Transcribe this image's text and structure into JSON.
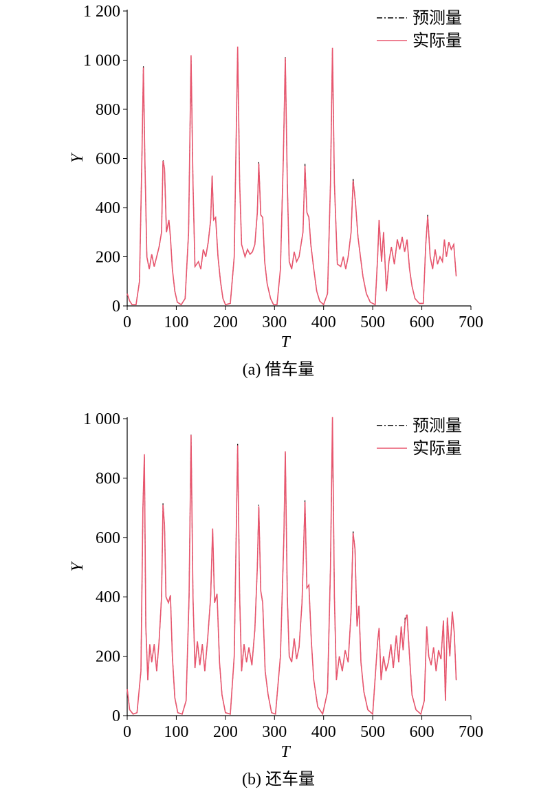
{
  "chart_data": [
    {
      "type": "line",
      "caption": "(a) 借车量",
      "xlabel": "T",
      "ylabel": "Y",
      "legend": "upper right",
      "xlim": [
        0,
        700
      ],
      "ylim": [
        0,
        1200
      ],
      "xticks": [
        0,
        100,
        200,
        300,
        400,
        500,
        600,
        700
      ],
      "yticks": [
        0,
        200,
        400,
        600,
        800,
        {
          "value": 1000,
          "label": "1 000"
        },
        {
          "value": 1200,
          "label": "1 200"
        }
      ],
      "x": [
        0,
        5,
        10,
        18,
        25,
        30,
        33,
        36,
        40,
        45,
        50,
        55,
        60,
        65,
        70,
        73,
        76,
        80,
        85,
        88,
        92,
        97,
        102,
        110,
        118,
        125,
        130,
        134,
        138,
        145,
        150,
        155,
        160,
        165,
        170,
        173,
        176,
        180,
        185,
        190,
        195,
        200,
        210,
        218,
        225,
        229,
        233,
        240,
        245,
        250,
        255,
        260,
        265,
        268,
        272,
        276,
        280,
        285,
        292,
        298,
        305,
        312,
        318,
        322,
        326,
        330,
        335,
        340,
        345,
        350,
        358,
        362,
        366,
        370,
        374,
        380,
        386,
        392,
        400,
        408,
        414,
        418,
        422,
        428,
        435,
        440,
        445,
        450,
        456,
        460,
        465,
        470,
        475,
        480,
        487,
        495,
        505,
        510,
        513,
        518,
        522,
        528,
        533,
        538,
        544,
        550,
        555,
        560,
        565,
        570,
        575,
        580,
        586,
        595,
        603,
        608,
        612,
        617,
        622,
        627,
        632,
        637,
        642,
        646,
        650,
        655,
        660,
        665,
        670
      ],
      "series": [
        {
          "name": "预测量",
          "color": "#000000",
          "dash": "dashdot",
          "values": [
            50,
            20,
            5,
            5,
            100,
            600,
            975,
            600,
            200,
            150,
            210,
            160,
            200,
            240,
            300,
            595,
            560,
            300,
            350,
            280,
            150,
            60,
            15,
            5,
            30,
            300,
            1015,
            500,
            160,
            180,
            150,
            230,
            200,
            260,
            350,
            532,
            350,
            360,
            200,
            100,
            30,
            5,
            10,
            200,
            1050,
            500,
            250,
            200,
            230,
            210,
            220,
            250,
            380,
            585,
            370,
            360,
            180,
            90,
            30,
            5,
            5,
            150,
            600,
            1012,
            500,
            180,
            150,
            220,
            180,
            200,
            300,
            578,
            380,
            360,
            250,
            150,
            60,
            20,
            5,
            50,
            500,
            1045,
            500,
            170,
            160,
            200,
            150,
            200,
            300,
            520,
            420,
            280,
            200,
            120,
            50,
            15,
            5,
            200,
            350,
            180,
            300,
            60,
            180,
            240,
            170,
            270,
            230,
            280,
            220,
            270,
            150,
            80,
            30,
            10,
            10,
            250,
            370,
            200,
            150,
            230,
            170,
            200,
            180,
            270,
            200,
            260,
            230,
            250,
            120
          ]
        },
        {
          "name": "实际量",
          "color": "#e8566e",
          "dash": "solid",
          "values": [
            50,
            20,
            5,
            5,
            100,
            600,
            970,
            600,
            200,
            150,
            210,
            160,
            200,
            240,
            300,
            590,
            560,
            300,
            350,
            280,
            150,
            60,
            15,
            5,
            30,
            300,
            1020,
            500,
            160,
            180,
            150,
            230,
            200,
            260,
            350,
            530,
            350,
            360,
            200,
            100,
            30,
            5,
            10,
            200,
            1055,
            500,
            250,
            200,
            230,
            210,
            220,
            250,
            380,
            580,
            370,
            360,
            180,
            90,
            30,
            5,
            5,
            150,
            600,
            1010,
            500,
            180,
            150,
            220,
            180,
            200,
            300,
            570,
            380,
            360,
            250,
            150,
            60,
            20,
            5,
            50,
            500,
            1050,
            500,
            170,
            160,
            200,
            150,
            200,
            300,
            510,
            420,
            280,
            200,
            120,
            50,
            15,
            5,
            200,
            350,
            180,
            300,
            60,
            180,
            240,
            170,
            270,
            230,
            280,
            220,
            270,
            150,
            80,
            30,
            10,
            10,
            250,
            365,
            200,
            150,
            230,
            170,
            200,
            180,
            270,
            200,
            260,
            230,
            250,
            120
          ]
        }
      ]
    },
    {
      "type": "line",
      "caption": "(b) 还车量",
      "xlabel": "T",
      "ylabel": "Y",
      "legend": "upper right",
      "xlim": [
        0,
        700
      ],
      "ylim": [
        0,
        1000
      ],
      "xticks": [
        0,
        100,
        200,
        300,
        400,
        500,
        600,
        700
      ],
      "yticks": [
        0,
        200,
        400,
        600,
        800,
        {
          "value": 1000,
          "label": "1 000"
        }
      ],
      "x": [
        0,
        5,
        12,
        20,
        28,
        32,
        35,
        38,
        42,
        46,
        50,
        55,
        60,
        65,
        70,
        73,
        76,
        79,
        84,
        88,
        92,
        97,
        103,
        112,
        120,
        126,
        130,
        134,
        138,
        143,
        148,
        153,
        158,
        164,
        170,
        174,
        178,
        183,
        188,
        193,
        200,
        210,
        218,
        225,
        229,
        233,
        238,
        243,
        248,
        254,
        260,
        265,
        268,
        272,
        276,
        281,
        287,
        294,
        302,
        312,
        319,
        322,
        326,
        330,
        335,
        340,
        345,
        350,
        356,
        362,
        366,
        370,
        375,
        380,
        388,
        398,
        408,
        414,
        418,
        422,
        426,
        432,
        438,
        444,
        450,
        456,
        460,
        464,
        468,
        472,
        476,
        482,
        490,
        500,
        510,
        513,
        517,
        522,
        527,
        532,
        537,
        542,
        548,
        553,
        558,
        562,
        566,
        570,
        575,
        580,
        588,
        598,
        605,
        610,
        614,
        619,
        624,
        629,
        634,
        639,
        644,
        648,
        652,
        657,
        662,
        666,
        670
      ],
      "series": [
        {
          "name": "预测量",
          "color": "#000000",
          "dash": "dashdot",
          "values": [
            90,
            20,
            5,
            10,
            150,
            700,
            870,
            300,
            120,
            240,
            180,
            240,
            150,
            250,
            400,
            715,
            640,
            400,
            380,
            405,
            200,
            60,
            10,
            5,
            50,
            400,
            948,
            400,
            160,
            250,
            170,
            240,
            150,
            260,
            400,
            625,
            380,
            410,
            180,
            70,
            10,
            5,
            200,
            915,
            400,
            150,
            240,
            180,
            230,
            170,
            290,
            500,
            710,
            420,
            380,
            150,
            70,
            10,
            5,
            200,
            600,
            885,
            400,
            200,
            180,
            260,
            190,
            230,
            380,
            725,
            430,
            440,
            250,
            120,
            30,
            5,
            80,
            500,
            990,
            400,
            120,
            200,
            150,
            220,
            180,
            350,
            620,
            560,
            300,
            370,
            180,
            80,
            20,
            5,
            250,
            295,
            120,
            200,
            150,
            180,
            240,
            160,
            270,
            180,
            300,
            220,
            330,
            340,
            200,
            70,
            20,
            5,
            50,
            300,
            200,
            170,
            230,
            150,
            220,
            190,
            320,
            50,
            330,
            200,
            350,
            280,
            120
          ]
        },
        {
          "name": "实际量",
          "color": "#e8566e",
          "dash": "solid",
          "values": [
            90,
            20,
            5,
            10,
            150,
            700,
            880,
            300,
            120,
            240,
            180,
            240,
            150,
            250,
            400,
            710,
            640,
            400,
            380,
            405,
            200,
            60,
            10,
            5,
            50,
            400,
            945,
            400,
            160,
            250,
            170,
            240,
            150,
            260,
            400,
            630,
            380,
            410,
            180,
            70,
            10,
            5,
            200,
            910,
            400,
            150,
            240,
            180,
            230,
            170,
            290,
            500,
            705,
            420,
            380,
            150,
            70,
            10,
            5,
            200,
            600,
            890,
            400,
            200,
            180,
            260,
            190,
            230,
            380,
            720,
            430,
            440,
            250,
            120,
            30,
            5,
            80,
            500,
            1005,
            400,
            120,
            200,
            150,
            220,
            180,
            350,
            615,
            560,
            300,
            370,
            180,
            80,
            20,
            5,
            250,
            295,
            120,
            200,
            150,
            180,
            240,
            160,
            270,
            180,
            300,
            220,
            320,
            340,
            200,
            70,
            20,
            5,
            50,
            300,
            200,
            170,
            230,
            150,
            220,
            190,
            320,
            50,
            330,
            200,
            350,
            280,
            120
          ]
        }
      ]
    }
  ]
}
